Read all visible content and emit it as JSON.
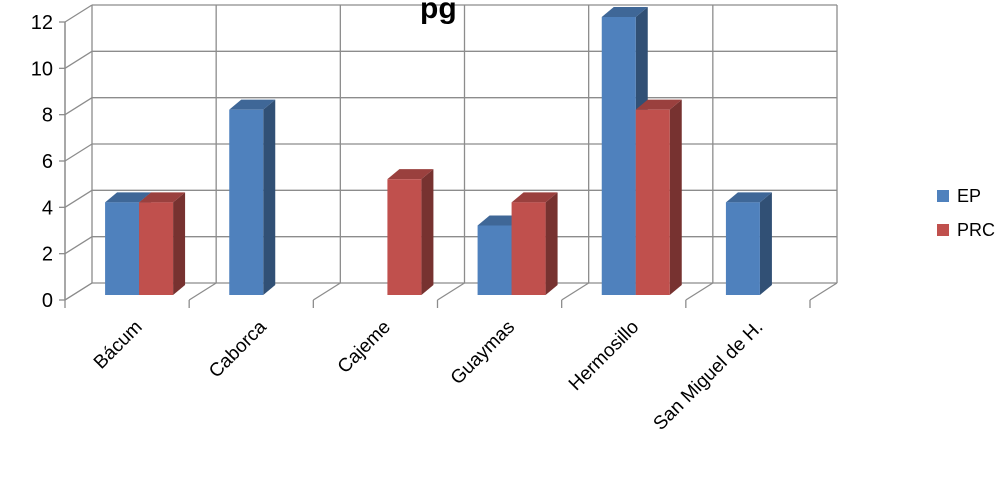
{
  "chart_data": {
    "type": "bar",
    "title": "",
    "title_fragment": "pg",
    "xlabel": "",
    "ylabel": "",
    "categories": [
      "Bácum",
      "Caborca",
      "Cajeme",
      "Guaymas",
      "Hermosillo",
      "San Miguel de H."
    ],
    "series": [
      {
        "name": "EP",
        "color": "#4F81BD",
        "values": [
          4,
          8,
          0,
          3,
          12,
          4
        ]
      },
      {
        "name": "PRC",
        "color": "#C0504D",
        "values": [
          4,
          0,
          5,
          4,
          8,
          0
        ]
      }
    ],
    "ylim": [
      0,
      12
    ],
    "yticks": [
      0,
      2,
      4,
      6,
      8,
      10,
      12
    ],
    "grid": true,
    "legend_position": "right",
    "style": "3d-clustered-column"
  }
}
